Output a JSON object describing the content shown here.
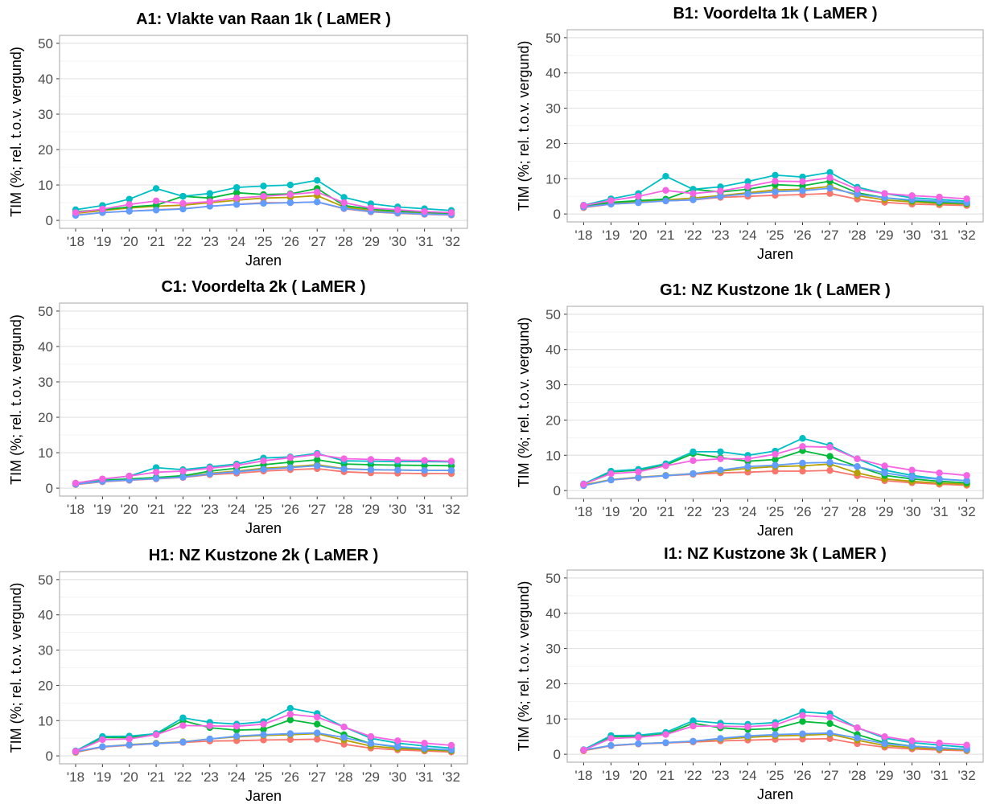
{
  "chart_data": [
    {
      "type": "line",
      "title": "A1: Vlakte van Raan 1k  ( LaMER )",
      "xlabel": "Jaren",
      "ylabel": "TIM (%; rel. t.o.v. vergund)",
      "ylim": [
        0,
        50
      ],
      "yticks": [
        0,
        10,
        20,
        30,
        40,
        50
      ],
      "categories": [
        "'18",
        "'19",
        "'20",
        "'21",
        "'22",
        "'23",
        "'24",
        "'25",
        "'26",
        "'27",
        "'28",
        "'29",
        "'30",
        "'31",
        "'32"
      ],
      "series": [
        {
          "color": "#F8766D",
          "values": [
            1.5,
            2.2,
            2.6,
            3.0,
            3.3,
            4.0,
            4.5,
            5.0,
            5.0,
            5.2,
            3.3,
            2.4,
            2.0,
            1.7,
            1.5
          ]
        },
        {
          "color": "#B79F00",
          "values": [
            2.0,
            2.8,
            3.5,
            4.0,
            4.3,
            5.0,
            5.7,
            6.3,
            6.5,
            7.0,
            3.8,
            2.8,
            2.3,
            2.0,
            1.8
          ]
        },
        {
          "color": "#00BA38",
          "values": [
            2.5,
            3.0,
            3.8,
            4.3,
            6.8,
            6.3,
            7.8,
            7.3,
            7.5,
            9.0,
            4.2,
            3.2,
            2.6,
            2.3,
            2.0
          ]
        },
        {
          "color": "#00BFC4",
          "values": [
            3.0,
            4.2,
            6.0,
            9.0,
            6.8,
            7.6,
            9.3,
            9.7,
            10.0,
            11.3,
            6.5,
            4.7,
            3.8,
            3.3,
            2.8
          ]
        },
        {
          "color": "#619CFF",
          "values": [
            1.4,
            2.2,
            2.6,
            2.9,
            3.2,
            4.0,
            4.5,
            4.8,
            5.0,
            5.2,
            3.4,
            2.5,
            2.1,
            1.8,
            1.6
          ]
        },
        {
          "color": "#F564E3",
          "values": [
            2.2,
            3.2,
            4.5,
            5.5,
            4.8,
            5.3,
            6.3,
            6.8,
            7.3,
            8.0,
            5.0,
            3.5,
            3.0,
            2.5,
            2.2
          ]
        }
      ]
    },
    {
      "type": "line",
      "title": "B1: Voordelta 1k  ( LaMER )",
      "xlabel": "Jaren",
      "ylabel": "TIM (%; rel. t.o.v. vergund)",
      "ylim": [
        0,
        50
      ],
      "yticks": [
        0,
        10,
        20,
        30,
        40,
        50
      ],
      "categories": [
        "'18",
        "'19",
        "'20",
        "'21",
        "'22",
        "'23",
        "'24",
        "'25",
        "'26",
        "'27",
        "'28",
        "'29",
        "'30",
        "'31",
        "'32"
      ],
      "series": [
        {
          "color": "#F8766D",
          "values": [
            1.8,
            2.8,
            3.2,
            3.7,
            4.0,
            4.7,
            5.0,
            5.3,
            5.5,
            5.8,
            4.2,
            3.3,
            2.8,
            2.6,
            2.4
          ]
        },
        {
          "color": "#B79F00",
          "values": [
            2.0,
            3.0,
            3.5,
            4.0,
            4.5,
            5.2,
            6.0,
            6.8,
            7.0,
            7.8,
            5.2,
            4.0,
            3.4,
            3.0,
            2.8
          ]
        },
        {
          "color": "#00BA38",
          "values": [
            2.3,
            3.3,
            3.8,
            4.2,
            7.0,
            6.2,
            7.0,
            8.3,
            8.0,
            9.3,
            6.0,
            4.6,
            3.8,
            3.3,
            3.0
          ]
        },
        {
          "color": "#00BFC4",
          "values": [
            2.5,
            4.3,
            5.8,
            10.7,
            7.0,
            7.7,
            9.2,
            11.0,
            10.5,
            11.8,
            7.6,
            5.8,
            4.6,
            4.1,
            3.6
          ]
        },
        {
          "color": "#619CFF",
          "values": [
            2.0,
            2.8,
            3.2,
            3.7,
            4.0,
            5.0,
            5.7,
            6.3,
            6.6,
            7.3,
            5.6,
            4.6,
            4.0,
            3.6,
            3.2
          ]
        },
        {
          "color": "#F564E3",
          "values": [
            2.4,
            3.8,
            5.0,
            6.7,
            5.8,
            6.5,
            7.8,
            9.3,
            9.2,
            10.3,
            7.0,
            5.8,
            5.2,
            4.8,
            4.3
          ]
        }
      ]
    },
    {
      "type": "line",
      "title": "C1: Voordelta 2k  ( LaMER )",
      "xlabel": "Jaren",
      "ylabel": "TIM (%; rel. t.o.v. vergund)",
      "ylim": [
        0,
        50
      ],
      "yticks": [
        0,
        10,
        20,
        30,
        40,
        50
      ],
      "categories": [
        "'18",
        "'19",
        "'20",
        "'21",
        "'22",
        "'23",
        "'24",
        "'25",
        "'26",
        "'27",
        "'28",
        "'29",
        "'30",
        "'31",
        "'32"
      ],
      "series": [
        {
          "color": "#F8766D",
          "values": [
            1.0,
            1.8,
            2.2,
            2.6,
            3.0,
            3.8,
            4.2,
            4.8,
            5.2,
            5.5,
            4.6,
            4.3,
            4.2,
            4.1,
            4.1
          ]
        },
        {
          "color": "#B79F00",
          "values": [
            1.1,
            2.0,
            2.4,
            2.8,
            3.2,
            4.2,
            4.8,
            5.6,
            6.0,
            6.6,
            5.5,
            5.2,
            5.1,
            5.0,
            5.0
          ]
        },
        {
          "color": "#00BA38",
          "values": [
            1.2,
            2.2,
            2.6,
            3.0,
            3.5,
            4.8,
            5.6,
            6.6,
            7.3,
            8.0,
            6.8,
            6.6,
            6.5,
            6.4,
            6.3
          ]
        },
        {
          "color": "#00BFC4",
          "values": [
            1.4,
            2.5,
            3.4,
            5.8,
            5.2,
            6.0,
            6.8,
            8.5,
            8.8,
            9.8,
            7.7,
            7.6,
            7.5,
            7.5,
            7.4
          ]
        },
        {
          "color": "#619CFF",
          "values": [
            1.1,
            1.9,
            2.3,
            2.7,
            3.1,
            4.0,
            4.6,
            5.3,
            5.8,
            6.3,
            5.4,
            5.2,
            5.1,
            5.0,
            5.0
          ]
        },
        {
          "color": "#F564E3",
          "values": [
            1.4,
            2.6,
            3.4,
            4.5,
            4.8,
            5.6,
            6.4,
            7.7,
            8.6,
            9.5,
            8.3,
            8.1,
            7.9,
            7.8,
            7.6
          ]
        }
      ]
    },
    {
      "type": "line",
      "title": "G1: NZ Kustzone 1k  ( LaMER )",
      "xlabel": "Jaren",
      "ylabel": "TIM (%; rel. t.o.v. vergund)",
      "ylim": [
        0,
        50
      ],
      "yticks": [
        0,
        10,
        20,
        30,
        40,
        50
      ],
      "categories": [
        "'18",
        "'19",
        "'20",
        "'21",
        "'22",
        "'23",
        "'24",
        "'25",
        "'26",
        "'27",
        "'28",
        "'29",
        "'30",
        "'31",
        "'32"
      ],
      "series": [
        {
          "color": "#F8766D",
          "values": [
            1.5,
            3.0,
            3.6,
            4.2,
            4.6,
            5.0,
            5.2,
            5.5,
            5.5,
            5.7,
            4.2,
            2.8,
            2.2,
            1.8,
            1.5
          ]
        },
        {
          "color": "#B79F00",
          "values": [
            1.6,
            3.1,
            3.8,
            4.3,
            4.8,
            5.5,
            6.3,
            6.8,
            7.0,
            7.5,
            5.0,
            3.3,
            2.6,
            2.1,
            1.8
          ]
        },
        {
          "color": "#00BA38",
          "values": [
            1.8,
            5.3,
            5.8,
            7.2,
            10.5,
            9.3,
            8.3,
            8.8,
            11.3,
            9.7,
            6.8,
            4.3,
            3.3,
            2.6,
            2.2
          ]
        },
        {
          "color": "#00BFC4",
          "values": [
            1.9,
            5.5,
            6.0,
            7.6,
            11.0,
            11.0,
            10.0,
            11.2,
            14.8,
            12.8,
            9.0,
            5.8,
            4.3,
            3.3,
            2.8
          ]
        },
        {
          "color": "#619CFF",
          "values": [
            1.4,
            3.0,
            3.7,
            4.2,
            4.8,
            5.8,
            6.8,
            7.2,
            7.8,
            8.0,
            6.8,
            5.0,
            3.8,
            3.2,
            2.8
          ]
        },
        {
          "color": "#F564E3",
          "values": [
            1.8,
            4.8,
            5.3,
            7.0,
            8.5,
            9.0,
            9.0,
            10.3,
            12.5,
            12.3,
            9.0,
            7.0,
            5.8,
            5.0,
            4.3
          ]
        }
      ]
    },
    {
      "type": "line",
      "title": "H1: NZ Kustzone 2k  ( LaMER )",
      "xlabel": "Jaren",
      "ylabel": "TIM (%; rel. t.o.v. vergund)",
      "ylim": [
        0,
        50
      ],
      "yticks": [
        0,
        10,
        20,
        30,
        40,
        50
      ],
      "categories": [
        "'18",
        "'19",
        "'20",
        "'21",
        "'22",
        "'23",
        "'24",
        "'25",
        "'26",
        "'27",
        "'28",
        "'29",
        "'30",
        "'31",
        "'32"
      ],
      "series": [
        {
          "color": "#F8766D",
          "values": [
            1.0,
            2.5,
            3.0,
            3.5,
            3.8,
            4.2,
            4.3,
            4.5,
            4.6,
            4.7,
            3.3,
            2.2,
            1.7,
            1.4,
            1.1
          ]
        },
        {
          "color": "#B79F00",
          "values": [
            1.1,
            2.6,
            3.2,
            3.6,
            4.0,
            4.8,
            5.4,
            5.8,
            6.0,
            6.3,
            4.5,
            2.8,
            2.1,
            1.7,
            1.4
          ]
        },
        {
          "color": "#00BA38",
          "values": [
            1.3,
            5.2,
            5.2,
            6.0,
            10.0,
            8.0,
            7.3,
            7.5,
            10.2,
            9.0,
            6.0,
            3.5,
            2.5,
            2.0,
            1.6
          ]
        },
        {
          "color": "#00BFC4",
          "values": [
            1.4,
            5.5,
            5.6,
            6.3,
            10.8,
            9.5,
            9.0,
            9.7,
            13.5,
            12.0,
            8.2,
            5.0,
            3.6,
            2.8,
            2.2
          ]
        },
        {
          "color": "#619CFF",
          "values": [
            1.2,
            2.6,
            3.1,
            3.5,
            3.9,
            4.8,
            5.6,
            6.0,
            6.3,
            6.5,
            5.2,
            3.5,
            2.6,
            2.1,
            1.7
          ]
        },
        {
          "color": "#F564E3",
          "values": [
            1.3,
            4.6,
            4.8,
            6.0,
            8.6,
            8.5,
            8.4,
            9.0,
            11.8,
            11.0,
            8.2,
            5.5,
            4.3,
            3.6,
            3.0
          ]
        }
      ]
    },
    {
      "type": "line",
      "title": "I1: NZ Kustzone 3k  ( LaMER )",
      "xlabel": "Jaren",
      "ylabel": "TIM (%; rel. t.o.v. vergund)",
      "ylim": [
        0,
        50
      ],
      "yticks": [
        0,
        10,
        20,
        30,
        40,
        50
      ],
      "categories": [
        "'18",
        "'19",
        "'20",
        "'21",
        "'22",
        "'23",
        "'24",
        "'25",
        "'26",
        "'27",
        "'28",
        "'29",
        "'30",
        "'31",
        "'32"
      ],
      "series": [
        {
          "color": "#F8766D",
          "values": [
            1.0,
            2.4,
            2.9,
            3.2,
            3.5,
            3.8,
            4.0,
            4.2,
            4.3,
            4.4,
            3.0,
            2.0,
            1.5,
            1.2,
            1.0
          ]
        },
        {
          "color": "#B79F00",
          "values": [
            1.1,
            2.5,
            3.0,
            3.3,
            3.7,
            4.3,
            4.8,
            5.2,
            5.4,
            5.7,
            4.0,
            2.5,
            1.9,
            1.5,
            1.2
          ]
        },
        {
          "color": "#00BA38",
          "values": [
            1.2,
            5.0,
            5.0,
            5.8,
            8.8,
            7.5,
            7.0,
            7.3,
            9.3,
            8.7,
            5.6,
            3.3,
            2.3,
            1.8,
            1.4
          ]
        },
        {
          "color": "#00BFC4",
          "values": [
            1.3,
            5.3,
            5.4,
            6.2,
            9.5,
            8.8,
            8.5,
            9.0,
            12.0,
            11.5,
            7.5,
            4.6,
            3.3,
            2.6,
            2.0
          ]
        },
        {
          "color": "#619CFF",
          "values": [
            1.2,
            2.5,
            3.0,
            3.3,
            3.7,
            4.5,
            5.2,
            5.6,
            5.8,
            6.0,
            4.6,
            3.0,
            2.3,
            1.8,
            1.4
          ]
        },
        {
          "color": "#F564E3",
          "values": [
            1.2,
            4.5,
            4.8,
            5.6,
            8.0,
            8.0,
            7.8,
            8.3,
            11.0,
            10.5,
            7.5,
            5.0,
            3.8,
            3.2,
            2.6
          ]
        }
      ]
    }
  ]
}
